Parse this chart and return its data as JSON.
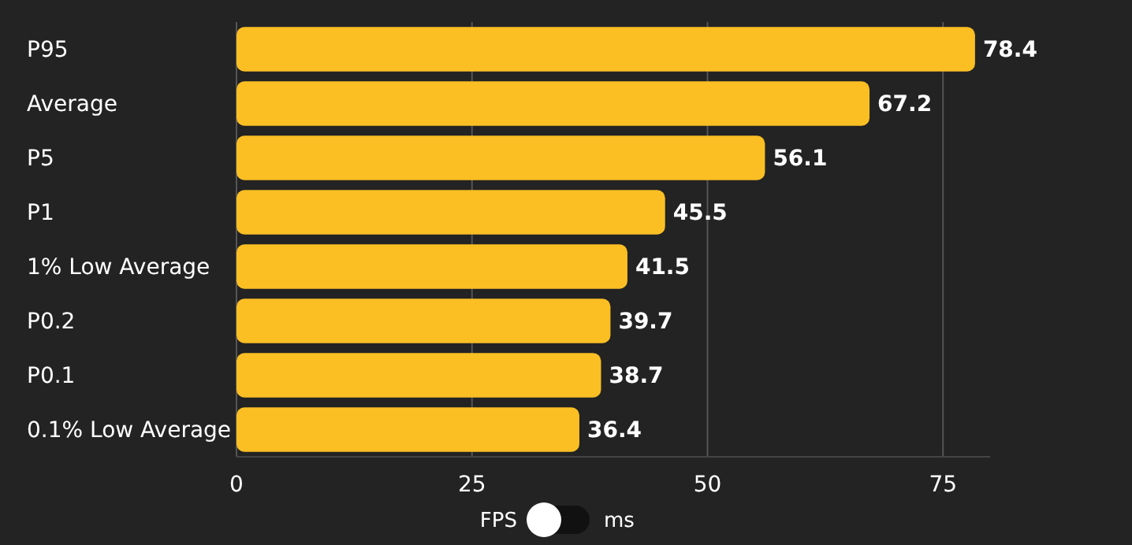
{
  "chart_data": {
    "type": "bar",
    "orientation": "horizontal",
    "categories": [
      "P95",
      "Average",
      "P5",
      "P1",
      "1% Low Average",
      "P0.2",
      "P0.1",
      "0.1% Low Average"
    ],
    "values": [
      78.4,
      67.2,
      56.1,
      45.5,
      41.5,
      39.7,
      38.7,
      36.4
    ],
    "color": "#fbbf24",
    "data_labels": true,
    "xlim": [
      0,
      80
    ],
    "xticks": [
      0,
      25,
      50,
      75
    ],
    "grid": "x",
    "annotations": [
      "FPS",
      "ms"
    ]
  }
}
